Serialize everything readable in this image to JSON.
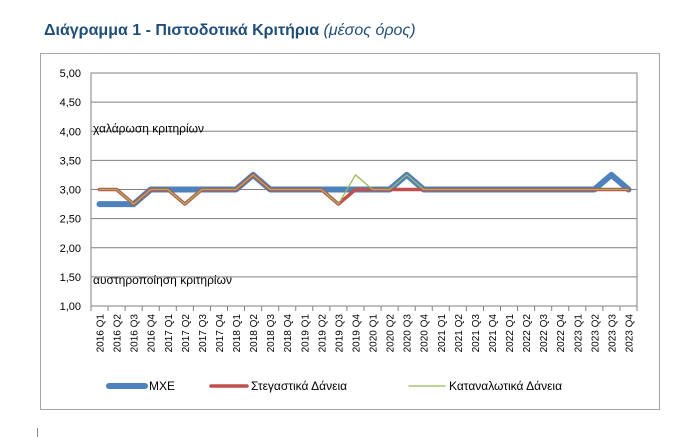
{
  "title": {
    "main": "Διάγραμμα 1 - Πιστοδοτικά Κριτήρια",
    "sub": "(μέσος όρος)"
  },
  "chart_data": {
    "type": "line",
    "title": "Διάγραμμα 1 - Πιστοδοτικά Κριτήρια (μέσος όρος)",
    "xlabel": "",
    "ylabel": "",
    "ylim": [
      1.0,
      5.0
    ],
    "yticks": [
      "1,00",
      "1,50",
      "2,00",
      "2,50",
      "3,00",
      "3,50",
      "4,00",
      "4,50",
      "5,00"
    ],
    "grid": true,
    "legend": "bottom",
    "annotations": [
      {
        "text": "χαλάρωση κριτηρίων",
        "y": 4.05
      },
      {
        "text": "αυστηροποίηση κριτηρίων",
        "y": 1.45
      }
    ],
    "categories": [
      "2016 Q1",
      "2016 Q2",
      "2016 Q3",
      "2016 Q4",
      "2017 Q1",
      "2017 Q2",
      "2017 Q3",
      "2017 Q4",
      "2018 Q1",
      "2018 Q2",
      "2018 Q3",
      "2018 Q4",
      "2019 Q1",
      "2019 Q2",
      "2019 Q3",
      "2019 Q4",
      "2020 Q1",
      "2020 Q2",
      "2020 Q3",
      "2020 Q4",
      "2021 Q1",
      "2021 Q2",
      "2021 Q3",
      "2021 Q4",
      "2022 Q1",
      "2022 Q2",
      "2022 Q3",
      "2022 Q4",
      "2023 Q1",
      "2023 Q2",
      "2023 Q3",
      "2023 Q4"
    ],
    "series": [
      {
        "name": "ΜΧΕ",
        "color": "#4f81bd",
        "width": 6,
        "values": [
          2.75,
          2.75,
          2.75,
          3.0,
          3.0,
          3.0,
          3.0,
          3.0,
          3.0,
          3.25,
          3.0,
          3.0,
          3.0,
          3.0,
          3.0,
          3.0,
          3.0,
          3.0,
          3.25,
          3.0,
          3.0,
          3.0,
          3.0,
          3.0,
          3.0,
          3.0,
          3.0,
          3.0,
          3.0,
          3.0,
          3.25,
          3.0
        ]
      },
      {
        "name": "Στεγαστικά Δάνεια",
        "color": "#c0504d",
        "width": 3.5,
        "values": [
          3.0,
          3.0,
          2.75,
          3.0,
          3.0,
          2.75,
          3.0,
          3.0,
          3.0,
          3.25,
          3.0,
          3.0,
          3.0,
          3.0,
          2.75,
          3.0,
          3.0,
          3.0,
          3.0,
          3.0,
          3.0,
          3.0,
          3.0,
          3.0,
          3.0,
          3.0,
          3.0,
          3.0,
          3.0,
          3.0,
          3.0,
          3.0
        ]
      },
      {
        "name": "Καταναλωτικά Δάνεια",
        "color": "#9bbb59",
        "width": 1.3,
        "values": [
          3.0,
          3.0,
          2.75,
          3.0,
          3.0,
          2.75,
          3.0,
          3.0,
          3.0,
          3.25,
          3.0,
          3.0,
          3.0,
          3.0,
          2.75,
          3.25,
          3.0,
          3.0,
          3.25,
          3.0,
          3.0,
          3.0,
          3.0,
          3.0,
          3.0,
          3.0,
          3.0,
          3.0,
          3.0,
          3.0,
          3.0,
          3.0
        ]
      }
    ]
  }
}
